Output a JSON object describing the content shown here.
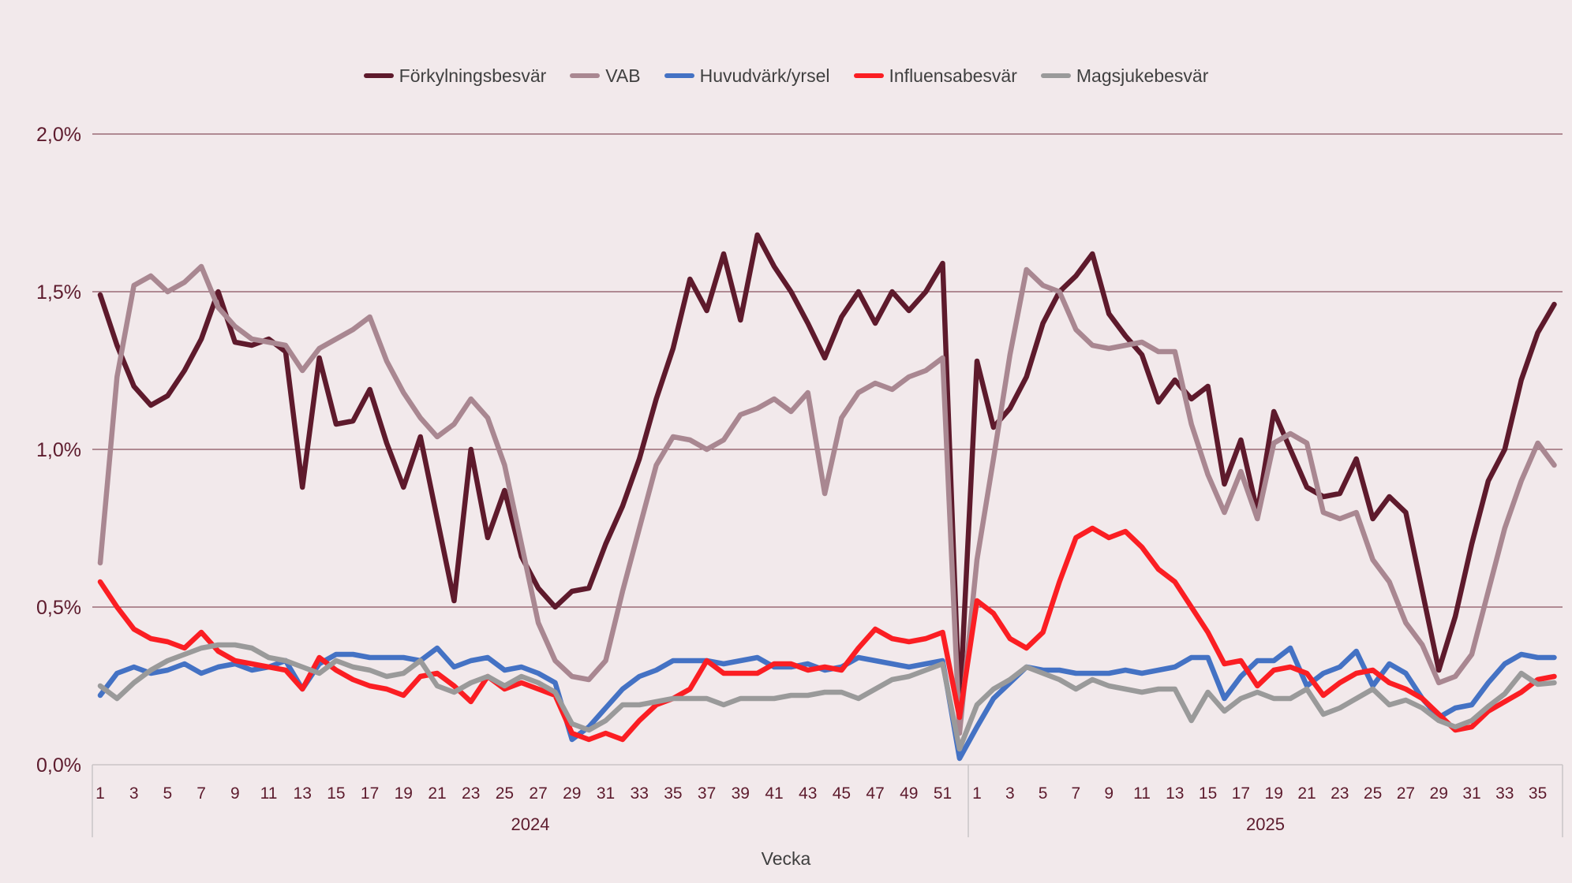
{
  "app": {
    "background_color": "#F2E9EB",
    "axis_text_color": "#5D1B2D",
    "grid_color": "#6E2B3B",
    "band_border_color": "#C9C4C6",
    "legend_text_color": "#404040"
  },
  "chart_data": {
    "type": "line",
    "title": "",
    "xlabel": "Vecka",
    "ylabel": "",
    "ylim": [
      0,
      2
    ],
    "grid": "horizontal",
    "legend_position": "top-center",
    "y_ticks": [
      {
        "value": 0.0,
        "label": "0,0%"
      },
      {
        "value": 0.5,
        "label": "0,5%"
      },
      {
        "value": 1.0,
        "label": "1,0%"
      },
      {
        "value": 1.5,
        "label": "1,5%"
      },
      {
        "value": 2.0,
        "label": "2,0%"
      }
    ],
    "x_axis": {
      "label": "Vecka",
      "tick_step": 2,
      "groups": [
        {
          "year": "2024",
          "weeks": 52
        },
        {
          "year": "2025",
          "weeks": 36
        }
      ]
    },
    "series": [
      {
        "name": "Förkylningsbesvär",
        "color": "#5E1A2C",
        "values": [
          1.49,
          1.33,
          1.2,
          1.14,
          1.17,
          1.25,
          1.35,
          1.5,
          1.34,
          1.33,
          1.35,
          1.31,
          0.88,
          1.29,
          1.08,
          1.09,
          1.19,
          1.02,
          0.88,
          1.04,
          0.78,
          0.52,
          1.0,
          0.72,
          0.87,
          0.66,
          0.56,
          0.5,
          0.55,
          0.56,
          0.7,
          0.82,
          0.97,
          1.16,
          1.32,
          1.54,
          1.44,
          1.62,
          1.41,
          1.68,
          1.58,
          1.5,
          1.4,
          1.29,
          1.42,
          1.5,
          1.4,
          1.5,
          1.44,
          1.5,
          1.59,
          0.17,
          1.28,
          1.07,
          1.13,
          1.23,
          1.4,
          1.5,
          1.55,
          1.62,
          1.43,
          1.36,
          1.3,
          1.15,
          1.22,
          1.16,
          1.2,
          0.89,
          1.03,
          0.8,
          1.12,
          1.0,
          0.88,
          0.85,
          0.86,
          0.97,
          0.78,
          0.85,
          0.8,
          0.55,
          0.3,
          0.47,
          0.7,
          0.9,
          1.0,
          1.22,
          1.37,
          1.46
        ]
      },
      {
        "name": "VAB",
        "color": "#A98791",
        "values": [
          0.64,
          1.23,
          1.52,
          1.55,
          1.5,
          1.53,
          1.58,
          1.45,
          1.39,
          1.35,
          1.34,
          1.33,
          1.25,
          1.32,
          1.35,
          1.38,
          1.42,
          1.28,
          1.18,
          1.1,
          1.04,
          1.08,
          1.16,
          1.1,
          0.95,
          0.7,
          0.45,
          0.33,
          0.28,
          0.27,
          0.33,
          0.55,
          0.75,
          0.95,
          1.04,
          1.03,
          1.0,
          1.03,
          1.11,
          1.13,
          1.16,
          1.12,
          1.18,
          0.86,
          1.1,
          1.18,
          1.21,
          1.19,
          1.23,
          1.25,
          1.29,
          0.1,
          0.65,
          0.97,
          1.3,
          1.57,
          1.52,
          1.5,
          1.38,
          1.33,
          1.32,
          1.33,
          1.34,
          1.31,
          1.31,
          1.08,
          0.92,
          0.8,
          0.93,
          0.78,
          1.02,
          1.05,
          1.02,
          0.8,
          0.78,
          0.8,
          0.65,
          0.58,
          0.45,
          0.38,
          0.26,
          0.28,
          0.35,
          0.55,
          0.75,
          0.9,
          1.02,
          0.95
        ]
      },
      {
        "name": "Huvudvärk/yrsel",
        "color": "#4472C4",
        "values": [
          0.22,
          0.29,
          0.31,
          0.29,
          0.3,
          0.32,
          0.29,
          0.31,
          0.32,
          0.3,
          0.31,
          0.33,
          0.24,
          0.32,
          0.35,
          0.35,
          0.34,
          0.34,
          0.34,
          0.33,
          0.37,
          0.31,
          0.33,
          0.34,
          0.3,
          0.31,
          0.29,
          0.26,
          0.08,
          0.12,
          0.18,
          0.24,
          0.28,
          0.3,
          0.33,
          0.33,
          0.33,
          0.32,
          0.33,
          0.34,
          0.31,
          0.31,
          0.32,
          0.3,
          0.31,
          0.34,
          0.33,
          0.32,
          0.31,
          0.32,
          0.33,
          0.02,
          0.12,
          0.21,
          0.26,
          0.31,
          0.3,
          0.3,
          0.29,
          0.29,
          0.29,
          0.3,
          0.29,
          0.3,
          0.31,
          0.34,
          0.34,
          0.21,
          0.28,
          0.33,
          0.33,
          0.37,
          0.25,
          0.29,
          0.31,
          0.36,
          0.25,
          0.32,
          0.29,
          0.21,
          0.15,
          0.18,
          0.19,
          0.26,
          0.32,
          0.35,
          0.34,
          0.34
        ]
      },
      {
        "name": "Influensabesvär",
        "color": "#FB1E23",
        "values": [
          0.58,
          0.5,
          0.43,
          0.4,
          0.39,
          0.37,
          0.42,
          0.36,
          0.33,
          0.32,
          0.31,
          0.3,
          0.24,
          0.34,
          0.3,
          0.27,
          0.25,
          0.24,
          0.22,
          0.28,
          0.29,
          0.25,
          0.2,
          0.28,
          0.24,
          0.26,
          0.24,
          0.22,
          0.1,
          0.08,
          0.1,
          0.08,
          0.14,
          0.19,
          0.21,
          0.24,
          0.33,
          0.29,
          0.29,
          0.29,
          0.32,
          0.32,
          0.3,
          0.31,
          0.3,
          0.37,
          0.43,
          0.4,
          0.39,
          0.4,
          0.42,
          0.15,
          0.52,
          0.48,
          0.4,
          0.37,
          0.42,
          0.58,
          0.72,
          0.75,
          0.72,
          0.74,
          0.69,
          0.62,
          0.58,
          0.5,
          0.42,
          0.32,
          0.33,
          0.25,
          0.3,
          0.31,
          0.29,
          0.22,
          0.26,
          0.29,
          0.3,
          0.26,
          0.24,
          0.21,
          0.16,
          0.11,
          0.12,
          0.17,
          0.2,
          0.23,
          0.27,
          0.28
        ]
      },
      {
        "name": "Magsjukebesvär",
        "color": "#9A9A9A",
        "values": [
          0.25,
          0.21,
          0.26,
          0.3,
          0.33,
          0.35,
          0.37,
          0.38,
          0.38,
          0.37,
          0.34,
          0.33,
          0.31,
          0.29,
          0.33,
          0.31,
          0.3,
          0.28,
          0.29,
          0.33,
          0.25,
          0.23,
          0.26,
          0.28,
          0.25,
          0.28,
          0.26,
          0.23,
          0.13,
          0.11,
          0.14,
          0.19,
          0.19,
          0.2,
          0.21,
          0.21,
          0.21,
          0.19,
          0.21,
          0.21,
          0.21,
          0.22,
          0.22,
          0.23,
          0.23,
          0.21,
          0.24,
          0.27,
          0.28,
          0.3,
          0.32,
          0.05,
          0.19,
          0.24,
          0.27,
          0.31,
          0.29,
          0.27,
          0.24,
          0.27,
          0.25,
          0.24,
          0.23,
          0.24,
          0.24,
          0.14,
          0.23,
          0.17,
          0.21,
          0.23,
          0.21,
          0.21,
          0.24,
          0.16,
          0.18,
          0.21,
          0.24,
          0.19,
          0.205,
          0.18,
          0.14,
          0.12,
          0.14,
          0.185,
          0.225,
          0.29,
          0.255,
          0.26
        ]
      }
    ]
  }
}
